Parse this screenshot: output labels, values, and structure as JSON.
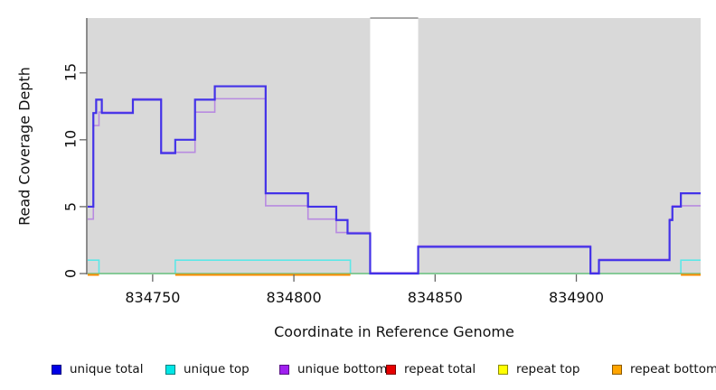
{
  "figure": {
    "x_axis_label": "Coordinate in Reference Genome",
    "y_axis_label": "Read Coverage Depth",
    "x_ticks": [
      "834750",
      "834800",
      "834850",
      "834900"
    ],
    "y_ticks": [
      "0",
      "5",
      "10",
      "15"
    ]
  },
  "legend": [
    {
      "label": "unique total",
      "color": "#0000e6"
    },
    {
      "label": "unique top",
      "color": "#00e6e6"
    },
    {
      "label": "unique bottom",
      "color": "#a020f0"
    },
    {
      "label": "repeat total",
      "color": "#e60000"
    },
    {
      "label": "repeat top",
      "color": "#ffff00"
    },
    {
      "label": "repeat bottom",
      "color": "#ffa500"
    }
  ],
  "chart_data": {
    "type": "line",
    "subtype": "step-coverage",
    "title": "",
    "xlabel": "Coordinate in Reference Genome",
    "ylabel": "Read Coverage Depth",
    "xlim": [
      834727,
      834944
    ],
    "ylim": [
      0,
      19.1
    ],
    "x_ticks": [
      834750,
      834800,
      834850,
      834900
    ],
    "y_ticks": [
      0,
      5,
      10,
      15
    ],
    "grid": false,
    "legend_position": "bottom",
    "plot_bg": "#d9d9d9",
    "gap_region": [
      834827,
      834844
    ],
    "gap_border_color": "#8c8c8c",
    "background_regions": [
      [
        834727,
        834827
      ],
      [
        834844,
        834944
      ]
    ],
    "axis_color": "#404040",
    "tick_color": "#666666",
    "series": [
      {
        "name": "unique top",
        "color": "#5ee7e7",
        "width": 1.6,
        "dy": 0,
        "steps": [
          [
            834727,
            1
          ],
          [
            834731,
            0
          ],
          [
            834758,
            1
          ],
          [
            834820,
            0
          ],
          [
            834937,
            1
          ]
        ],
        "end": 834944
      },
      {
        "name": "repeat total (zero baseline, renders green)",
        "color": "#7cbf7c",
        "width": 1.5,
        "dy": 0,
        "steps": [
          [
            834727,
            0
          ]
        ],
        "end": 834944
      },
      {
        "name": "repeat top",
        "color": "#ffff00",
        "width": 0,
        "dy": 0,
        "steps": [
          [
            834727,
            0
          ]
        ],
        "end": 834944
      },
      {
        "name": "repeat bottom",
        "color": "#ff8c00",
        "width": 2,
        "dy": 1.5,
        "value": 0,
        "segments": [
          [
            834727,
            834731
          ],
          [
            834758,
            834820
          ],
          [
            834937,
            834944
          ]
        ]
      },
      {
        "name": "unique bottom",
        "color": "#b88ae0",
        "width": 1.6,
        "dy": -1,
        "steps": [
          [
            834727,
            4
          ],
          [
            834729,
            11
          ],
          [
            834731,
            12
          ],
          [
            834743,
            13
          ],
          [
            834753,
            9
          ],
          [
            834765,
            12
          ],
          [
            834772,
            13
          ],
          [
            834790,
            5
          ],
          [
            834805,
            4
          ],
          [
            834815,
            3
          ],
          [
            834827,
            0
          ],
          [
            834844,
            2
          ],
          [
            834905,
            0
          ],
          [
            834908,
            1
          ],
          [
            834933,
            4
          ],
          [
            834934,
            5
          ]
        ],
        "end": 834944
      },
      {
        "name": "unique total",
        "color": "#4332e8",
        "width": 2.2,
        "dy": 0,
        "steps": [
          [
            834727,
            5
          ],
          [
            834729,
            12
          ],
          [
            834730,
            13
          ],
          [
            834732,
            12
          ],
          [
            834743,
            13
          ],
          [
            834753,
            9
          ],
          [
            834758,
            10
          ],
          [
            834765,
            13
          ],
          [
            834772,
            14
          ],
          [
            834790,
            6
          ],
          [
            834805,
            5
          ],
          [
            834815,
            4
          ],
          [
            834819,
            3
          ],
          [
            834827,
            0
          ],
          [
            834844,
            2
          ],
          [
            834905,
            0
          ],
          [
            834908,
            1
          ],
          [
            834933,
            4
          ],
          [
            834934,
            5
          ],
          [
            834937,
            6
          ]
        ],
        "end": 834944
      }
    ]
  }
}
